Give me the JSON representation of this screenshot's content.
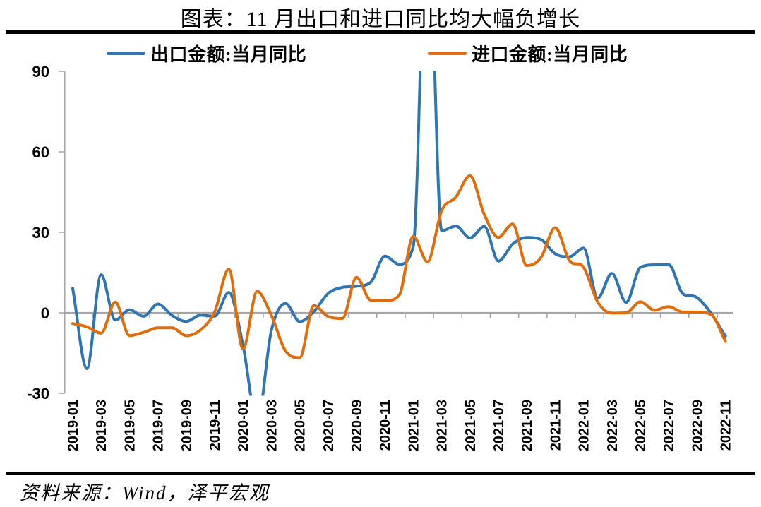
{
  "header": {
    "title": "图表：11 月出口和进口同比均大幅负增长"
  },
  "legend": [
    {
      "label": "出口金额:当月同比",
      "color": "#2E75B6"
    },
    {
      "label": "进口金额:当月同比",
      "color": "#E36C0A"
    }
  ],
  "source": {
    "text": "资料来源：Wind，泽平宏观"
  },
  "colors": {
    "axis": "#A6A6A6",
    "text": "#000000",
    "divider": "#000000",
    "background": "#FFFFFF"
  },
  "chart_data": {
    "type": "line",
    "title": "图表：11 月出口和进口同比均大幅负增长",
    "x": [
      "2019-01",
      "2019-02",
      "2019-03",
      "2019-04",
      "2019-05",
      "2019-06",
      "2019-07",
      "2019-08",
      "2019-09",
      "2019-10",
      "2019-11",
      "2019-12",
      "2020-01",
      "2020-02",
      "2020-03",
      "2020-04",
      "2020-05",
      "2020-06",
      "2020-07",
      "2020-08",
      "2020-09",
      "2020-10",
      "2020-11",
      "2020-12",
      "2021-01",
      "2021-02",
      "2021-03",
      "2021-04",
      "2021-05",
      "2021-06",
      "2021-07",
      "2021-08",
      "2021-09",
      "2021-10",
      "2021-11",
      "2021-12",
      "2022-01",
      "2022-02",
      "2022-03",
      "2022-04",
      "2022-05",
      "2022-06",
      "2022-07",
      "2022-08",
      "2022-09",
      "2022-10",
      "2022-11"
    ],
    "series": [
      {
        "name": "出口金额:当月同比",
        "color": "#2E75B6",
        "values": [
          9.1,
          -20.8,
          14.2,
          -2.7,
          1.1,
          -1.3,
          3.3,
          -1.0,
          -3.2,
          -0.9,
          -1.3,
          7.6,
          -12.0,
          -40.6,
          -6.6,
          3.5,
          -3.3,
          0.5,
          7.2,
          9.5,
          9.9,
          11.4,
          21.1,
          18.1,
          24.8,
          154.9,
          30.6,
          32.3,
          27.9,
          32.2,
          19.3,
          25.6,
          28.1,
          27.3,
          22.0,
          20.9,
          24.1,
          5.5,
          14.7,
          3.9,
          16.9,
          17.9,
          18.0,
          7.1,
          5.7,
          -0.3,
          -8.7
        ]
      },
      {
        "name": "进口金额:当月同比",
        "color": "#E36C0A",
        "values": [
          -4.0,
          -5.2,
          -7.6,
          4.0,
          -8.5,
          -7.3,
          -5.6,
          -5.6,
          -8.5,
          -6.4,
          0.3,
          16.3,
          -13.5,
          8.0,
          -0.9,
          -14.2,
          -16.7,
          2.7,
          -1.4,
          -2.1,
          13.2,
          4.7,
          4.5,
          6.5,
          28.5,
          19.0,
          38.1,
          43.1,
          51.1,
          36.7,
          28.1,
          33.1,
          17.6,
          20.6,
          31.7,
          19.5,
          17.0,
          4.0,
          -0.1,
          0.0,
          4.1,
          1.0,
          2.3,
          0.3,
          0.3,
          -0.7,
          -10.6
        ]
      }
    ],
    "ylim": [
      -30,
      90
    ],
    "yticks": [
      90,
      60,
      30,
      0,
      -30
    ],
    "xtick_labels": [
      "2019-01",
      "2019-03",
      "2019-05",
      "2019-07",
      "2019-09",
      "2019-11",
      "2020-01",
      "2020-03",
      "2020-05",
      "2020-07",
      "2020-09",
      "2020-11",
      "2021-01",
      "2021-03",
      "2021-05",
      "2021-07",
      "2021-09",
      "2021-11",
      "2022-01",
      "2022-03",
      "2022-05",
      "2022-07",
      "2022-09",
      "2022-11"
    ],
    "grid": "zero-line-only",
    "legend_position": "top",
    "line_clipped_at_top": 90,
    "smoothing": "spline"
  }
}
